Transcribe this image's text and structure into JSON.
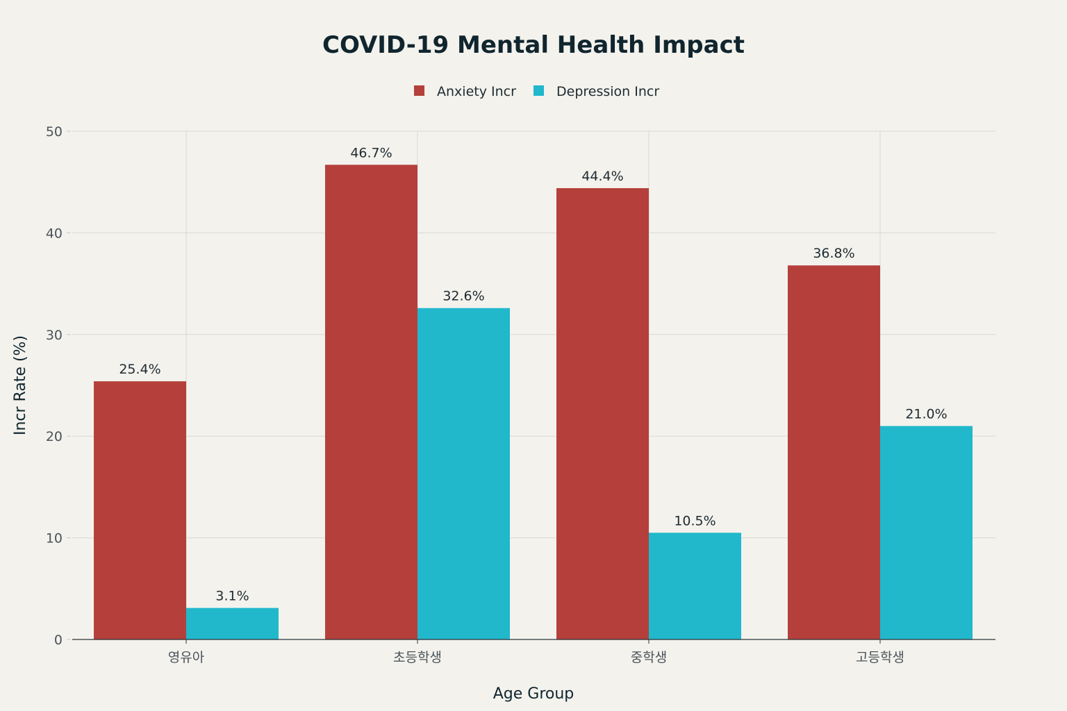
{
  "chart_data": {
    "type": "bar",
    "title": "COVID-19 Mental Health Impact",
    "xlabel": "Age Group",
    "ylabel": "Incr Rate (%)",
    "categories": [
      "영유아",
      "초등학생",
      "중학생",
      "고등학생"
    ],
    "series": [
      {
        "name": "Anxiety Incr",
        "color": "#b5403b",
        "values": [
          25.4,
          46.7,
          44.4,
          36.8
        ],
        "labels": [
          "25.4%",
          "46.7%",
          "44.4%",
          "36.8%"
        ]
      },
      {
        "name": "Depression Incr",
        "color": "#21b8cc",
        "values": [
          3.1,
          32.6,
          10.5,
          21.0
        ],
        "labels": [
          "3.1%",
          "32.6%",
          "10.5%",
          "21.0%"
        ]
      }
    ],
    "ylim": [
      0,
      50
    ],
    "yticks": [
      0,
      10,
      20,
      30,
      40,
      50
    ],
    "grid": true,
    "legend_position": "top-center"
  }
}
